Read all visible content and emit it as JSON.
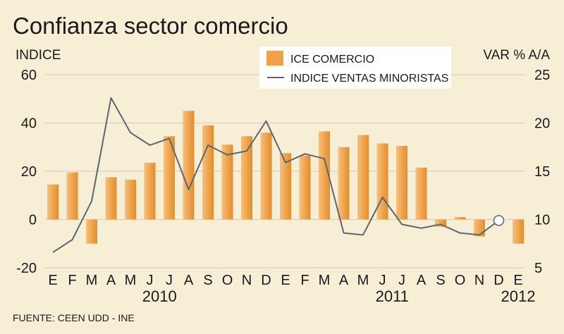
{
  "chart_data": {
    "type": "bar+line",
    "title": "Confianza sector comercio",
    "left_axis_label": "INDICE",
    "right_axis_label": "VAR % A/A",
    "source": "FUENTE: CEEN UDD - INE",
    "months": [
      "E",
      "F",
      "M",
      "A",
      "M",
      "J",
      "J",
      "A",
      "S",
      "O",
      "N",
      "D",
      "E",
      "F",
      "M",
      "A",
      "M",
      "J",
      "J",
      "A",
      "S",
      "O",
      "N",
      "D",
      "E"
    ],
    "years": [
      {
        "label": "2010",
        "month_start": 0,
        "month_end": 11
      },
      {
        "label": "2011",
        "month_start": 12,
        "month_end": 23
      },
      {
        "label": "2012",
        "month_start": 24,
        "month_end": 24
      }
    ],
    "left_axis": {
      "ylim": [
        -20,
        60
      ],
      "ticks": [
        60,
        40,
        20,
        0,
        -20
      ]
    },
    "right_axis": {
      "ylim": [
        5,
        25
      ],
      "ticks": [
        25,
        20,
        15,
        10,
        5
      ]
    },
    "series": [
      {
        "name": "ICE COMERCIO",
        "kind": "bar",
        "axis": "left",
        "color": "#f0a24a",
        "values": [
          14.5,
          19.5,
          -10,
          17.5,
          16.5,
          23.5,
          34.5,
          45,
          39,
          31,
          34.5,
          36,
          27.5,
          26.5,
          36.5,
          30,
          35,
          31.5,
          30.5,
          21.5,
          -3,
          1,
          -7,
          null,
          -10
        ]
      },
      {
        "name": "INDICE VENTAS MINORISTAS",
        "kind": "line",
        "axis": "right",
        "color": "#5b6670",
        "values": [
          6.6,
          7.9,
          11.9,
          22.6,
          19.0,
          17.7,
          18.4,
          13.1,
          17.7,
          16.7,
          17.1,
          20.2,
          15.9,
          16.8,
          16.3,
          8.6,
          8.4,
          12.3,
          9.5,
          9.1,
          9.5,
          8.6,
          8.4,
          9.9,
          null
        ]
      }
    ],
    "last_point_marker": "hollow-circle"
  }
}
